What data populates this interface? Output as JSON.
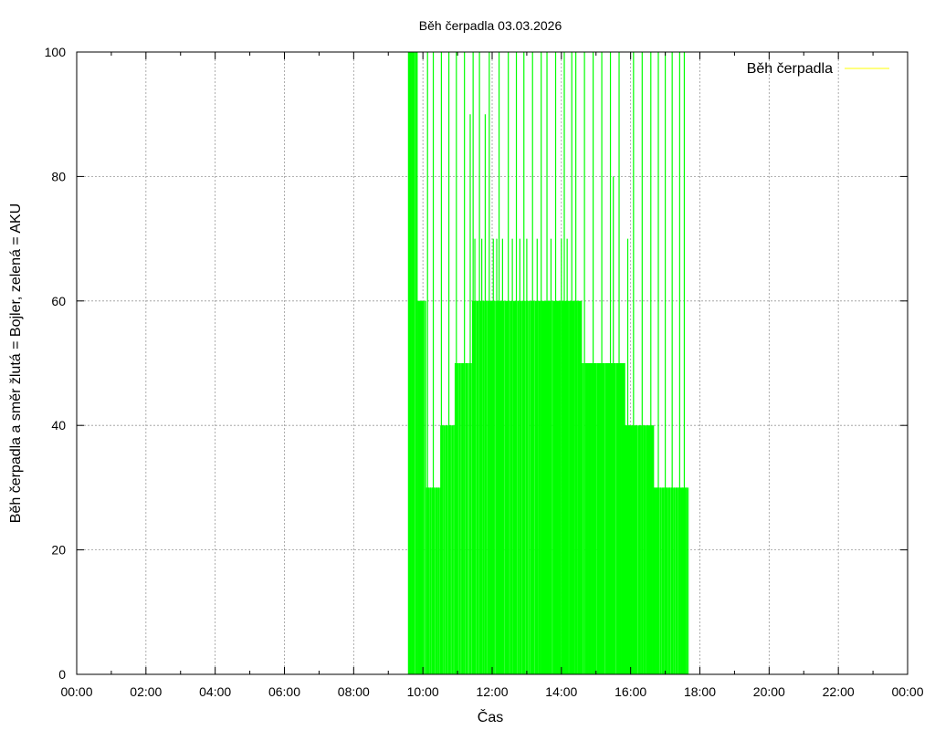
{
  "chart_data": {
    "type": "line",
    "title": "Běh čerpadla 03.03.2026",
    "xlabel": "Čas",
    "ylabel": "Běh čerpadla a směr žlutá = Bojler, zelená = AKU",
    "xlim": [
      "00:00",
      "24:00"
    ],
    "ylim": [
      0,
      100
    ],
    "x_ticks": [
      "00:00",
      "02:00",
      "04:00",
      "06:00",
      "08:00",
      "10:00",
      "12:00",
      "14:00",
      "16:00",
      "18:00",
      "20:00",
      "22:00",
      "00:00"
    ],
    "y_ticks": [
      0,
      20,
      40,
      60,
      80,
      100
    ],
    "grid": true,
    "legend": {
      "position": "top-right",
      "entries": [
        {
          "label": "Běh čerpadla",
          "color": "#ffff00"
        }
      ]
    },
    "series": [
      {
        "color": "#00ff00",
        "segments": [
          {
            "start": "09:35",
            "end": "09:50",
            "level": 100,
            "density": 0.15
          },
          {
            "start": "09:50",
            "end": "10:05",
            "level": 60,
            "density": 0.25
          },
          {
            "start": "10:05",
            "end": "10:30",
            "level": 30,
            "density": 0.55
          },
          {
            "start": "10:30",
            "end": "10:55",
            "level": 40,
            "density": 0.65
          },
          {
            "start": "10:55",
            "end": "11:25",
            "level": 50,
            "density": 0.7
          },
          {
            "start": "11:25",
            "end": "11:55",
            "level": 60,
            "density": 0.8
          },
          {
            "start": "11:55",
            "end": "14:35",
            "level": 60,
            "density": 0.88
          },
          {
            "start": "14:35",
            "end": "15:50",
            "level": 50,
            "density": 0.85
          },
          {
            "start": "15:50",
            "end": "16:40",
            "level": 40,
            "density": 0.8
          },
          {
            "start": "16:40",
            "end": "17:40",
            "level": 30,
            "density": 0.55
          }
        ],
        "spikes": [
          {
            "time": "09:35",
            "value": 100
          },
          {
            "time": "09:50",
            "value": 100
          },
          {
            "time": "09:53",
            "value": 60
          },
          {
            "time": "10:08",
            "value": 100
          },
          {
            "time": "10:18",
            "value": 100
          },
          {
            "time": "10:32",
            "value": 100
          },
          {
            "time": "10:45",
            "value": 100
          },
          {
            "time": "10:58",
            "value": 100
          },
          {
            "time": "11:12",
            "value": 100
          },
          {
            "time": "11:22",
            "value": 90
          },
          {
            "time": "11:27",
            "value": 100
          },
          {
            "time": "11:30",
            "value": 70
          },
          {
            "time": "11:38",
            "value": 100
          },
          {
            "time": "11:42",
            "value": 70
          },
          {
            "time": "11:48",
            "value": 90
          },
          {
            "time": "11:55",
            "value": 100
          },
          {
            "time": "12:02",
            "value": 70
          },
          {
            "time": "12:08",
            "value": 70
          },
          {
            "time": "12:12",
            "value": 100
          },
          {
            "time": "12:18",
            "value": 70
          },
          {
            "time": "12:28",
            "value": 100
          },
          {
            "time": "12:35",
            "value": 70
          },
          {
            "time": "12:42",
            "value": 100
          },
          {
            "time": "12:48",
            "value": 70
          },
          {
            "time": "12:55",
            "value": 100
          },
          {
            "time": "13:00",
            "value": 70
          },
          {
            "time": "13:10",
            "value": 100
          },
          {
            "time": "13:18",
            "value": 70
          },
          {
            "time": "13:25",
            "value": 100
          },
          {
            "time": "13:35",
            "value": 100
          },
          {
            "time": "13:42",
            "value": 70
          },
          {
            "time": "13:50",
            "value": 100
          },
          {
            "time": "14:00",
            "value": 70
          },
          {
            "time": "14:05",
            "value": 100
          },
          {
            "time": "14:10",
            "value": 70
          },
          {
            "time": "14:18",
            "value": 100
          },
          {
            "time": "14:25",
            "value": 100
          },
          {
            "time": "14:40",
            "value": 100
          },
          {
            "time": "14:55",
            "value": 100
          },
          {
            "time": "15:10",
            "value": 100
          },
          {
            "time": "15:25",
            "value": 100
          },
          {
            "time": "15:30",
            "value": 80
          },
          {
            "time": "15:40",
            "value": 100
          },
          {
            "time": "15:55",
            "value": 70
          },
          {
            "time": "16:05",
            "value": 100
          },
          {
            "time": "16:20",
            "value": 100
          },
          {
            "time": "16:35",
            "value": 100
          },
          {
            "time": "16:48",
            "value": 100
          },
          {
            "time": "17:00",
            "value": 100
          },
          {
            "time": "17:12",
            "value": 100
          },
          {
            "time": "17:25",
            "value": 100
          },
          {
            "time": "17:33",
            "value": 100
          }
        ]
      }
    ]
  }
}
